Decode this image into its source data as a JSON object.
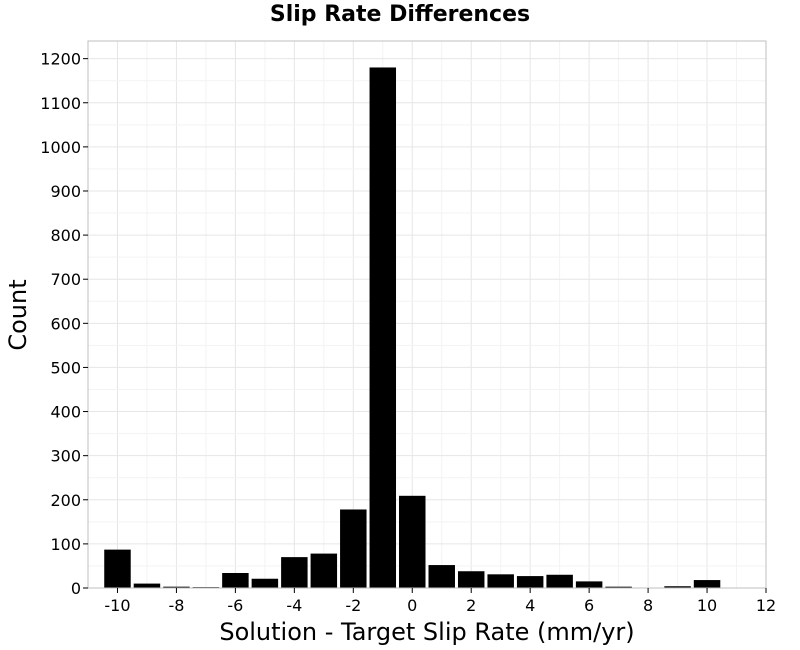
{
  "chart_data": {
    "type": "bar",
    "title": "Slip Rate Differences",
    "xlabel": "Solution - Target Slip Rate (mm/yr)",
    "ylabel": "Count",
    "bin_width": 1,
    "x": [
      -10,
      -9,
      -8,
      -7,
      -6,
      -5,
      -4,
      -3,
      -2,
      -1,
      0,
      1,
      2,
      3,
      4,
      5,
      6,
      7,
      8,
      9,
      10
    ],
    "values": [
      87,
      10,
      3,
      2,
      34,
      21,
      70,
      78,
      178,
      1180,
      209,
      52,
      38,
      31,
      27,
      30,
      15,
      3,
      0,
      4,
      18
    ],
    "xlim": [
      -11,
      12
    ],
    "ylim": [
      0,
      1240
    ],
    "xticks": [
      -10,
      -8,
      -6,
      -4,
      -2,
      0,
      2,
      4,
      6,
      8,
      10,
      12
    ],
    "yticks": [
      0,
      100,
      200,
      300,
      400,
      500,
      600,
      700,
      800,
      900,
      1000,
      1100,
      1200
    ],
    "grid": true,
    "bar_color": "#000000",
    "grid_color": "#e6e6e6",
    "frame_color": "#bfbfbf"
  }
}
